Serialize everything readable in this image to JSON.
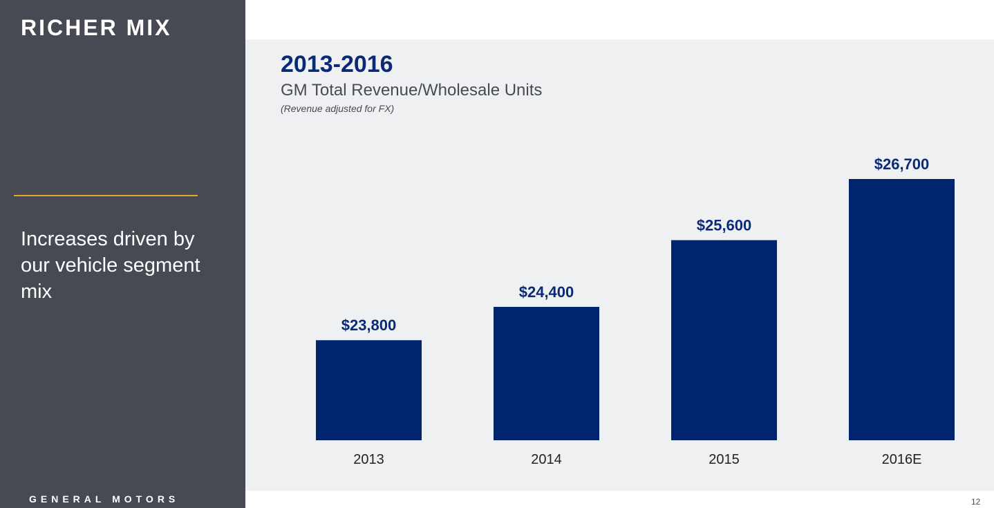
{
  "sidebar": {
    "title": "RICHER MIX",
    "text": "Increases driven by our vehicle segment mix",
    "logo": "GENERAL MOTORS",
    "accent_color": "#e8a92a"
  },
  "page_number": "12",
  "chart_data": {
    "type": "bar",
    "title": "2013-2016",
    "subtitle": "GM Total Revenue/Wholesale Units",
    "note": "(Revenue adjusted for FX)",
    "categories": [
      "2013",
      "2014",
      "2015",
      "2016E"
    ],
    "values": [
      23800,
      24400,
      25600,
      26700
    ],
    "data_labels": [
      "$23,800",
      "$24,400",
      "$25,600",
      "$26,700"
    ],
    "ylim": [
      22000,
      26700
    ],
    "grid": false,
    "bar_color": "#00246e"
  }
}
